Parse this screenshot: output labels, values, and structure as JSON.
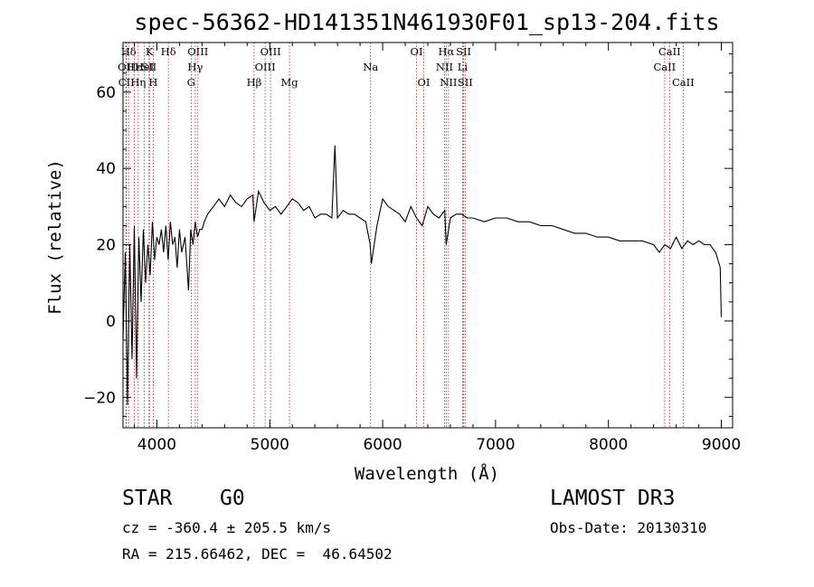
{
  "chart_data": {
    "type": "line",
    "title": "spec-56362-HD141351N461930F01_sp13-204.fits",
    "xlabel": "Wavelength (Å)",
    "ylabel": "Flux (relative)",
    "xlim": [
      3700,
      9100
    ],
    "ylim": [
      -28,
      73
    ],
    "x_ticks": [
      4000,
      5000,
      6000,
      7000,
      8000,
      9000
    ],
    "y_ticks": [
      -20,
      0,
      20,
      40,
      60
    ],
    "series": [
      {
        "name": "flux",
        "x": [
          3700,
          3720,
          3740,
          3760,
          3780,
          3800,
          3820,
          3840,
          3860,
          3880,
          3900,
          3920,
          3940,
          3960,
          3980,
          4000,
          4020,
          4040,
          4060,
          4080,
          4100,
          4120,
          4140,
          4160,
          4180,
          4200,
          4220,
          4250,
          4280,
          4300,
          4320,
          4340,
          4360,
          4380,
          4400,
          4420,
          4450,
          4500,
          4550,
          4600,
          4650,
          4700,
          4750,
          4800,
          4850,
          4861,
          4900,
          4950,
          5000,
          5050,
          5100,
          5150,
          5200,
          5250,
          5300,
          5350,
          5400,
          5450,
          5500,
          5550,
          5577,
          5600,
          5650,
          5700,
          5750,
          5800,
          5850,
          5890,
          5900,
          5950,
          6000,
          6050,
          6100,
          6150,
          6200,
          6250,
          6300,
          6350,
          6400,
          6450,
          6500,
          6550,
          6563,
          6600,
          6650,
          6700,
          6750,
          6800,
          6900,
          7000,
          7100,
          7200,
          7300,
          7400,
          7500,
          7600,
          7700,
          7800,
          7900,
          8000,
          8100,
          8200,
          8300,
          8400,
          8450,
          8500,
          8550,
          8600,
          8650,
          8700,
          8750,
          8800,
          8850,
          8900,
          8950,
          8990,
          9000
        ],
        "values": [
          -5,
          18,
          -22,
          20,
          -10,
          25,
          -15,
          22,
          5,
          24,
          10,
          20,
          12,
          26,
          16,
          22,
          20,
          24,
          18,
          25,
          16,
          26,
          20,
          22,
          14,
          24,
          18,
          22,
          8,
          24,
          20,
          26,
          22,
          24,
          24,
          26,
          28,
          30,
          32,
          30,
          33,
          31,
          30,
          32,
          33,
          26,
          34,
          31,
          29,
          30,
          28,
          30,
          32,
          31,
          29,
          30,
          27,
          28,
          28,
          27,
          46,
          27,
          29,
          28,
          28,
          27,
          26,
          20,
          15,
          25,
          32,
          30,
          29,
          28,
          26,
          30,
          27,
          25,
          30,
          28,
          27,
          29,
          20,
          27,
          28,
          28,
          27,
          27,
          26,
          27,
          27,
          26,
          26,
          25,
          25,
          24,
          23,
          23,
          22,
          22,
          21,
          21,
          21,
          20,
          18,
          20,
          19,
          22,
          19,
          21,
          20,
          21,
          20,
          20,
          18,
          14,
          1
        ]
      }
    ],
    "spectral_lines": [
      {
        "label": "Hδ",
        "x": 3750,
        "row": 0
      },
      {
        "label": "OII",
        "x": 3727,
        "row": 1
      },
      {
        "label": "CII",
        "x": 3730,
        "row": 2
      },
      {
        "label": "Hε",
        "x": 3800,
        "row": 1
      },
      {
        "label": "Hη",
        "x": 3835,
        "row": 2
      },
      {
        "label": "K",
        "x": 3934,
        "row": 0
      },
      {
        "label": "HeI",
        "x": 3889,
        "row": 1
      },
      {
        "label": "SII",
        "x": 3930,
        "row": 1
      },
      {
        "label": "H",
        "x": 3968,
        "row": 2
      },
      {
        "label": "Hδ",
        "x": 4102,
        "row": 0
      },
      {
        "label": "OIII",
        "x": 4363,
        "row": 0
      },
      {
        "label": "Hγ",
        "x": 4340,
        "row": 1
      },
      {
        "label": "G",
        "x": 4304,
        "row": 2
      },
      {
        "label": "Hβ",
        "x": 4861,
        "row": 2
      },
      {
        "label": "OIII",
        "x": 5007,
        "row": 0
      },
      {
        "label": "OIII",
        "x": 4959,
        "row": 1
      },
      {
        "label": "Mg",
        "x": 5175,
        "row": 2
      },
      {
        "label": "Na",
        "x": 5893,
        "row": 1
      },
      {
        "label": "OI",
        "x": 6300,
        "row": 0
      },
      {
        "label": "OI",
        "x": 6364,
        "row": 2
      },
      {
        "label": "Hα",
        "x": 6563,
        "row": 0
      },
      {
        "label": "NII",
        "x": 6548,
        "row": 1
      },
      {
        "label": "NII",
        "x": 6583,
        "row": 2
      },
      {
        "label": "SII",
        "x": 6717,
        "row": 0
      },
      {
        "label": "Li",
        "x": 6708,
        "row": 1
      },
      {
        "label": "SII",
        "x": 6731,
        "row": 2
      },
      {
        "label": "CaII",
        "x": 8542,
        "row": 0
      },
      {
        "label": "CaII",
        "x": 8498,
        "row": 1
      },
      {
        "label": "CaII",
        "x": 8662,
        "row": 2
      }
    ]
  },
  "info": {
    "object_class": "STAR",
    "subclass": "G0",
    "survey": "LAMOST DR3",
    "redshift": "cz = -360.4 ± 205.5 km/s",
    "obs_date": "Obs-Date: 20130310",
    "coords": "RA = 215.66462, DEC =  46.64502"
  },
  "colors": {
    "line_marker": "#b22222",
    "spectrum": "#000000"
  }
}
